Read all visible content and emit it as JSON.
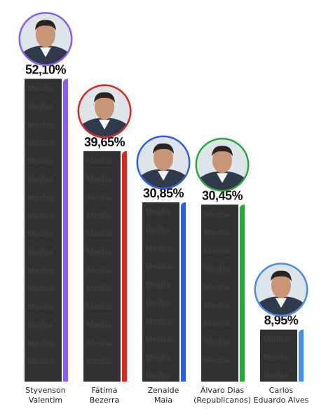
{
  "chart_data": {
    "type": "bar",
    "categories": [
      [
        "Styvenson",
        "Valentim"
      ],
      [
        "Fátima",
        "Bezerra"
      ],
      [
        "Zenaide",
        "Maia"
      ],
      [
        "Álvaro Dias",
        "(Republicanos)"
      ],
      [
        "Carlos",
        "Eduardo Alves"
      ]
    ],
    "values": [
      52.1,
      39.65,
      30.85,
      30.45,
      8.95
    ],
    "value_labels": [
      "52,10%",
      "39,65%",
      "30,85%",
      "30,45%",
      "8,95%"
    ],
    "colors": [
      "#8a5cf0",
      "#d42a1f",
      "#2e5fe0",
      "#2aa83a",
      "#4a8ae8"
    ],
    "watermark": "Media",
    "title": "",
    "xlabel": "",
    "ylabel": "",
    "ylim": [
      0,
      55
    ],
    "grid": false,
    "legend": "none"
  }
}
